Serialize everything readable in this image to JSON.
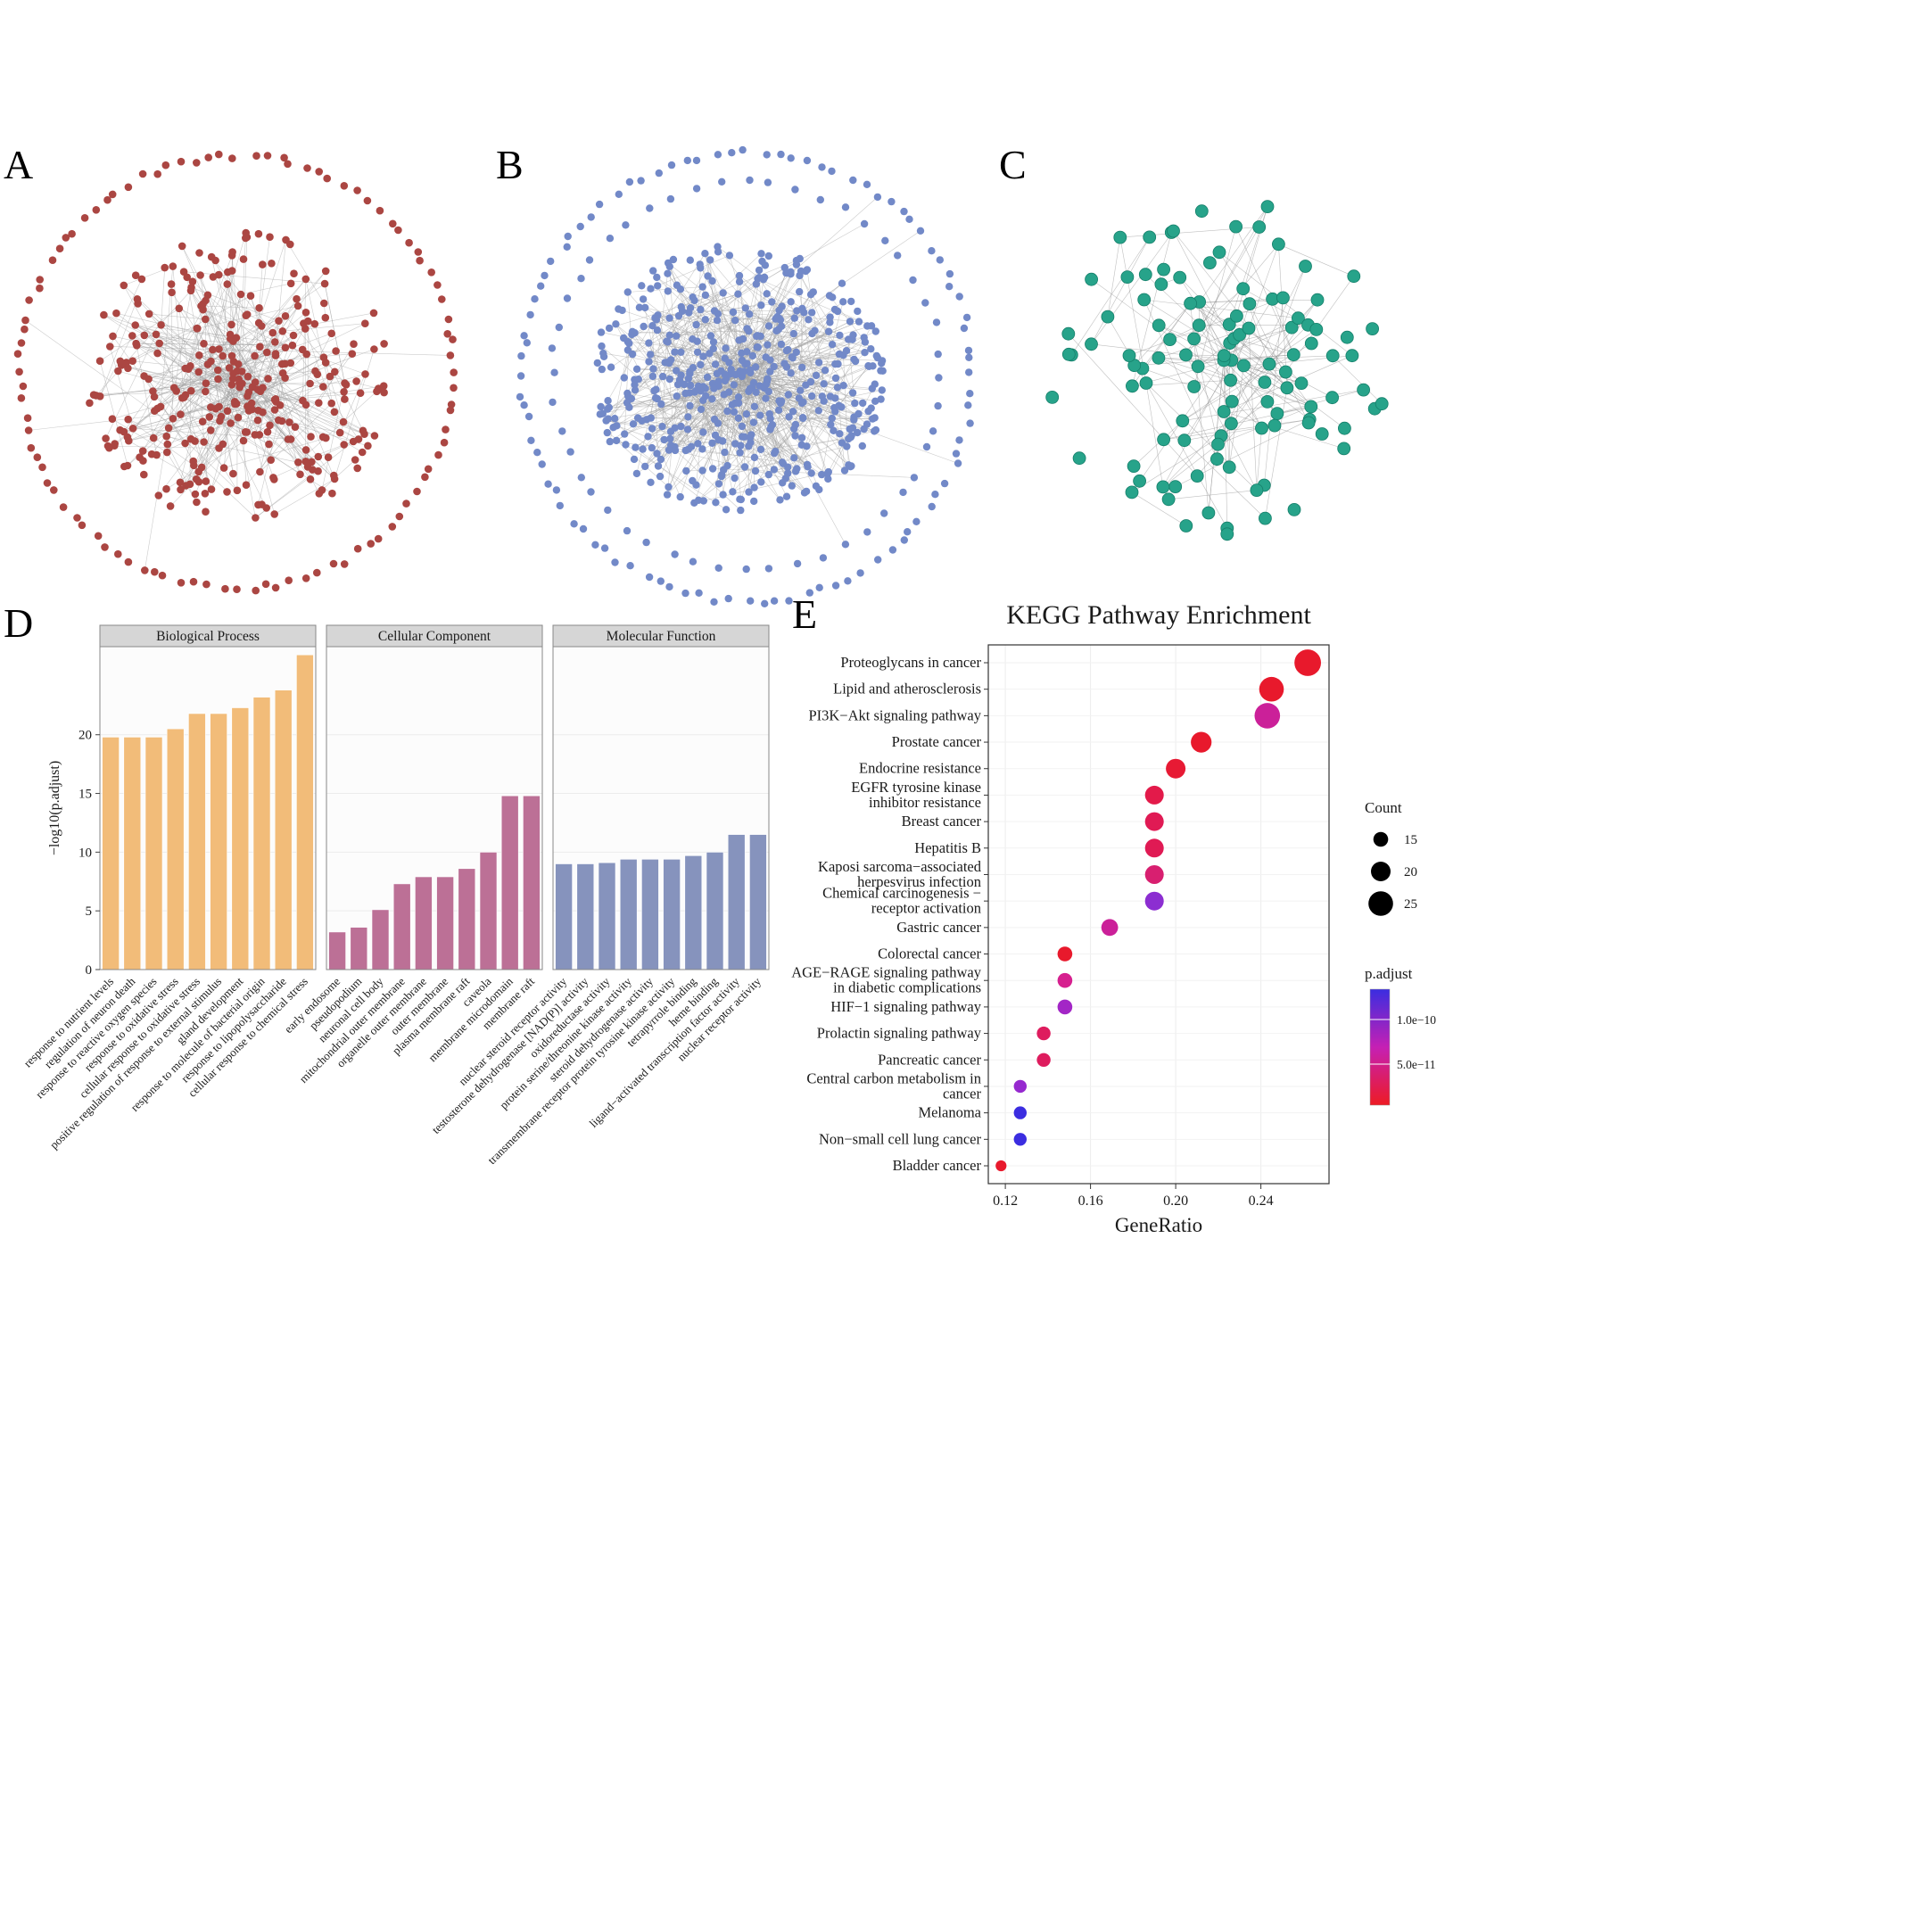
{
  "figure": {
    "background": "#ffffff",
    "panel_labels": [
      "A",
      "B",
      "C",
      "D",
      "E"
    ]
  },
  "networks": {
    "a": {
      "node_color": "#ab4642",
      "edge_color": "#a3a3a3",
      "node_radius": 4.3,
      "seed": 11,
      "rings": [
        {
          "r": 243,
          "n": 96
        }
      ],
      "cluster": {
        "n": 335,
        "spread": 170,
        "dx": 2,
        "dy": 6,
        "ax": 1.0,
        "ay": 0.97
      },
      "edges": 430,
      "spokes": 4
    },
    "b": {
      "node_color": "#7289c8",
      "edge_color": "#a3a3a3",
      "node_radius": 4.2,
      "seed": 23,
      "rings": [
        {
          "r": 252,
          "n": 92
        },
        {
          "r": 218,
          "n": 48
        }
      ],
      "cluster": {
        "n": 520,
        "spread": 158,
        "dx": -8,
        "dy": 2,
        "ax": 1.05,
        "ay": 0.95
      },
      "edges": 760,
      "spokes": 6
    },
    "c": {
      "node_color": "#27a38a",
      "node_stroke": "#157f6a",
      "edge_color": "#8c8c8c",
      "node_radius": 7,
      "seed": 5,
      "rings": [],
      "cluster": {
        "n": 112,
        "spread": 205,
        "dx": 0,
        "dy": 0,
        "ax": 1.0,
        "ay": 0.93
      },
      "edges": 150,
      "spokes": 0
    }
  },
  "chart_data": [
    {
      "id": "go_enrichment",
      "type": "bar",
      "ylabel": "−log10(p.adjust)",
      "yticks": [
        0,
        5,
        10,
        15,
        20
      ],
      "ylim": [
        0,
        27.5
      ],
      "facets": [
        {
          "label": "Biological Process",
          "color": "#f2bc79",
          "categories": [
            "response to nutrient levels",
            "regulation of neuron death",
            "response to reactive oxygen species",
            "response to oxidative stress",
            "cellular response to oxidative stress",
            "positive regulation of response to external stimulus",
            "gland development",
            "response to molecule of bacterial origin",
            "response to lipopolysaccharide",
            "cellular response to chemical stress"
          ],
          "values": [
            19.8,
            19.8,
            19.8,
            20.5,
            21.8,
            21.8,
            22.3,
            23.2,
            23.8,
            26.8
          ]
        },
        {
          "label": "Cellular Component",
          "color": "#bc7096",
          "categories": [
            "early endosome",
            "pseudopodium",
            "neuronal cell body",
            "mitochondrial outer membrane",
            "organelle outer membrane",
            "outer membrane",
            "plasma membrane raft",
            "caveola",
            "membrane microdomain",
            "membrane raft"
          ],
          "values": [
            3.2,
            3.6,
            5.1,
            7.3,
            7.9,
            7.9,
            8.6,
            10.0,
            14.8,
            14.8
          ]
        },
        {
          "label": "Molecular Function",
          "color": "#8693bd",
          "categories": [
            "nuclear steroid receptor activity",
            "testosterone dehydrogenase [NAD(P)] activity",
            "oxidoreductase activity",
            "protein serine/threonine kinase activity",
            "steroid dehydrogenase activity",
            "transmembrane receptor protein tyrosine kinase activity",
            "tetrapyrrole binding",
            "heme binding",
            "ligand−activated transcription factor activity",
            "nuclear receptor activity"
          ],
          "values": [
            9.0,
            9.0,
            9.1,
            9.4,
            9.4,
            9.4,
            9.7,
            10.0,
            11.5,
            11.5
          ]
        }
      ]
    },
    {
      "id": "kegg_enrichment",
      "type": "scatter",
      "title": "KEGG Pathway Enrichment",
      "xlabel": "GeneRatio",
      "xlim": [
        0.112,
        0.272
      ],
      "xticks": [
        0.12,
        0.16,
        0.2,
        0.24
      ],
      "xtick_labels": [
        "0.12",
        "0.16",
        "0.20",
        "0.24"
      ],
      "legend_count": {
        "title": "Count",
        "values": [
          15,
          20,
          25
        ]
      },
      "legend_padjust": {
        "title": "p.adjust",
        "tick_labels": [
          "1.0e−10",
          "5.0e−11"
        ],
        "gradient": [
          "#3b2de0",
          "#c520b4",
          "#ed1b24"
        ]
      },
      "points": [
        {
          "label": "Proteoglycans in cancer",
          "gene_ratio": 0.262,
          "count": 27,
          "color": "#e8192c"
        },
        {
          "label": "Lipid and atherosclerosis",
          "gene_ratio": 0.245,
          "count": 25,
          "color": "#e8192c"
        },
        {
          "label": "PI3K−Akt signaling pathway",
          "gene_ratio": 0.243,
          "count": 26,
          "color": "#cb2099"
        },
        {
          "label": "Prostate cancer",
          "gene_ratio": 0.212,
          "count": 21,
          "color": "#e8192c"
        },
        {
          "label": "Endocrine resistance",
          "gene_ratio": 0.2,
          "count": 20,
          "color": "#e71a34"
        },
        {
          "label": "EGFR tyrosine kinase\ninhibitor resistance",
          "gene_ratio": 0.19,
          "count": 19,
          "color": "#e31a4a"
        },
        {
          "label": "Breast cancer",
          "gene_ratio": 0.19,
          "count": 19,
          "color": "#e01a54"
        },
        {
          "label": "Hepatitis B",
          "gene_ratio": 0.19,
          "count": 19,
          "color": "#e01a54"
        },
        {
          "label": "Kaposi sarcoma−associated\nherpesvirus infection",
          "gene_ratio": 0.19,
          "count": 19,
          "color": "#d81f70"
        },
        {
          "label": "Chemical carcinogenesis −\nreceptor activation",
          "gene_ratio": 0.19,
          "count": 19,
          "color": "#8c2ed1"
        },
        {
          "label": "Gastric cancer",
          "gene_ratio": 0.169,
          "count": 17,
          "color": "#cb2099"
        },
        {
          "label": "Colorectal cancer",
          "gene_ratio": 0.148,
          "count": 15,
          "color": "#e8192c"
        },
        {
          "label": "AGE−RAGE signaling pathway\nin diabetic complications",
          "gene_ratio": 0.148,
          "count": 15,
          "color": "#d6208f"
        },
        {
          "label": "HIF−1 signaling pathway",
          "gene_ratio": 0.148,
          "count": 15,
          "color": "#a326c6"
        },
        {
          "label": "Prolactin signaling pathway",
          "gene_ratio": 0.138,
          "count": 14,
          "color": "#de1c5e"
        },
        {
          "label": "Pancreatic cancer",
          "gene_ratio": 0.138,
          "count": 14,
          "color": "#de1c5e"
        },
        {
          "label": "Central carbon metabolism in\ncancer",
          "gene_ratio": 0.127,
          "count": 13,
          "color": "#9629cf"
        },
        {
          "label": "Melanoma",
          "gene_ratio": 0.127,
          "count": 13,
          "color": "#3b2de0"
        },
        {
          "label": "Non−small cell lung cancer",
          "gene_ratio": 0.127,
          "count": 13,
          "color": "#3b2de0"
        },
        {
          "label": "Bladder cancer",
          "gene_ratio": 0.118,
          "count": 11,
          "color": "#e8192c"
        }
      ]
    }
  ]
}
